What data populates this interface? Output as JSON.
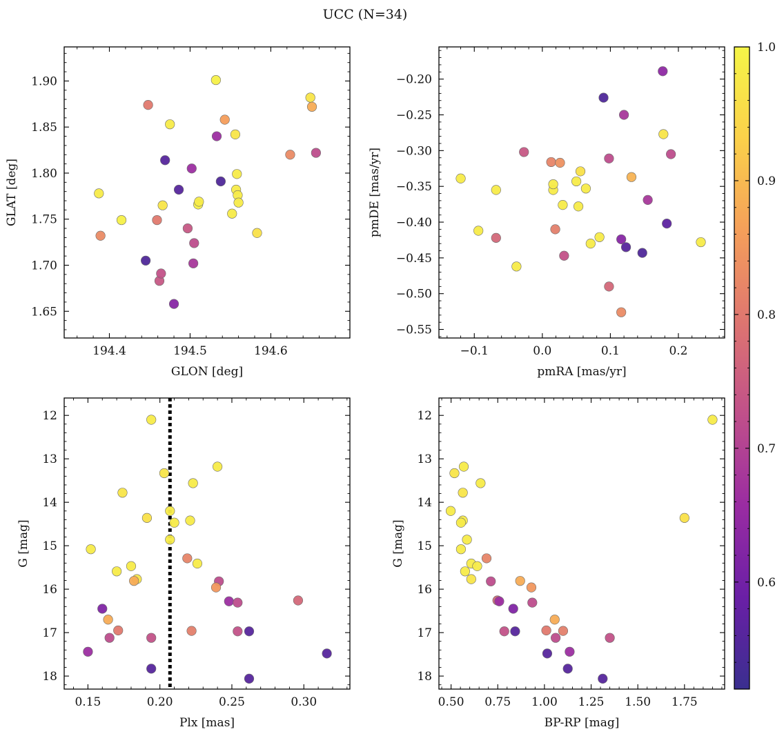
{
  "suptitle": "UCC (N=34)",
  "colors": {
    "marker_edge": "#6b6b6b",
    "vline": "#000000",
    "colormap": [
      "#3a2f8f",
      "#6a1fa6",
      "#9a2ca2",
      "#c0508a",
      "#de7570",
      "#f59f5a",
      "#fbd14a",
      "#f5f548"
    ]
  },
  "colorbar": {
    "range": [
      0.52,
      1.0
    ],
    "ticks": [
      0.6,
      0.7,
      0.8,
      0.9,
      1.0
    ],
    "tick_labels": [
      "0.6",
      "0.7",
      "0.8",
      "0.9",
      "1.0"
    ]
  },
  "chart_data": [
    {
      "type": "scatter",
      "panel": "top-left",
      "xlabel": "GLON [deg]",
      "ylabel": "GLAT [deg]",
      "xlim": [
        194.344,
        194.698
      ],
      "ylim": [
        1.621,
        1.937
      ],
      "y_inverted": false,
      "xticks": [
        194.4,
        194.5,
        194.6
      ],
      "xtick_labels": [
        "194.4",
        "194.5",
        "194.6"
      ],
      "yticks": [
        1.65,
        1.7,
        1.75,
        1.8,
        1.85,
        1.9
      ],
      "ytick_labels": [
        "1.65",
        "1.70",
        "1.75",
        "1.80",
        "1.85",
        "1.90"
      ],
      "points": [
        {
          "x": 194.387,
          "y": 1.778,
          "c": 0.98
        },
        {
          "x": 194.389,
          "y": 1.732,
          "c": 0.83
        },
        {
          "x": 194.415,
          "y": 1.749,
          "c": 0.99
        },
        {
          "x": 194.445,
          "y": 1.705,
          "c": 0.55
        },
        {
          "x": 194.448,
          "y": 1.874,
          "c": 0.8
        },
        {
          "x": 194.459,
          "y": 1.749,
          "c": 0.8
        },
        {
          "x": 194.462,
          "y": 1.683,
          "c": 0.74
        },
        {
          "x": 194.464,
          "y": 1.691,
          "c": 0.73
        },
        {
          "x": 194.466,
          "y": 1.765,
          "c": 0.97
        },
        {
          "x": 194.469,
          "y": 1.814,
          "c": 0.56
        },
        {
          "x": 194.475,
          "y": 1.853,
          "c": 0.98
        },
        {
          "x": 194.48,
          "y": 1.658,
          "c": 0.63
        },
        {
          "x": 194.486,
          "y": 1.782,
          "c": 0.56
        },
        {
          "x": 194.497,
          "y": 1.74,
          "c": 0.74
        },
        {
          "x": 194.502,
          "y": 1.805,
          "c": 0.66
        },
        {
          "x": 194.504,
          "y": 1.702,
          "c": 0.68
        },
        {
          "x": 194.505,
          "y": 1.724,
          "c": 0.72
        },
        {
          "x": 194.51,
          "y": 1.766,
          "c": 0.99
        },
        {
          "x": 194.511,
          "y": 1.769,
          "c": 0.98
        },
        {
          "x": 194.532,
          "y": 1.901,
          "c": 0.99
        },
        {
          "x": 194.533,
          "y": 1.84,
          "c": 0.66
        },
        {
          "x": 194.538,
          "y": 1.791,
          "c": 0.55
        },
        {
          "x": 194.543,
          "y": 1.858,
          "c": 0.86
        },
        {
          "x": 194.552,
          "y": 1.756,
          "c": 0.98
        },
        {
          "x": 194.556,
          "y": 1.842,
          "c": 0.97
        },
        {
          "x": 194.557,
          "y": 1.782,
          "c": 0.98
        },
        {
          "x": 194.558,
          "y": 1.799,
          "c": 0.98
        },
        {
          "x": 194.559,
          "y": 1.776,
          "c": 0.98
        },
        {
          "x": 194.56,
          "y": 1.768,
          "c": 0.98
        },
        {
          "x": 194.583,
          "y": 1.735,
          "c": 0.96
        },
        {
          "x": 194.624,
          "y": 1.82,
          "c": 0.83
        },
        {
          "x": 194.649,
          "y": 1.882,
          "c": 0.97
        },
        {
          "x": 194.651,
          "y": 1.872,
          "c": 0.88
        },
        {
          "x": 194.656,
          "y": 1.822,
          "c": 0.72
        }
      ]
    },
    {
      "type": "scatter",
      "panel": "top-right",
      "xlabel": "pmRA [mas/yr]",
      "ylabel": "pmDE [mas/yr]",
      "xlim": [
        -0.152,
        0.268
      ],
      "ylim": [
        -0.562,
        -0.155
      ],
      "y_inverted": false,
      "xticks": [
        -0.1,
        0.0,
        0.1,
        0.2
      ],
      "xtick_labels": [
        "−0.1",
        "0.0",
        "0.1",
        "0.2"
      ],
      "yticks": [
        -0.55,
        -0.5,
        -0.45,
        -0.4,
        -0.35,
        -0.3,
        -0.25,
        -0.2
      ],
      "ytick_labels": [
        "−0.55",
        "−0.50",
        "−0.45",
        "−0.40",
        "−0.35",
        "−0.30",
        "−0.25",
        "−0.20"
      ],
      "points": [
        {
          "x": -0.12,
          "y": -0.339,
          "c": 0.98
        },
        {
          "x": -0.094,
          "y": -0.412,
          "c": 0.98
        },
        {
          "x": -0.068,
          "y": -0.355,
          "c": 0.98
        },
        {
          "x": -0.068,
          "y": -0.422,
          "c": 0.77
        },
        {
          "x": -0.038,
          "y": -0.462,
          "c": 0.98
        },
        {
          "x": -0.027,
          "y": -0.302,
          "c": 0.74
        },
        {
          "x": 0.013,
          "y": -0.316,
          "c": 0.82
        },
        {
          "x": 0.016,
          "y": -0.355,
          "c": 0.98
        },
        {
          "x": 0.016,
          "y": -0.347,
          "c": 0.98
        },
        {
          "x": 0.019,
          "y": -0.41,
          "c": 0.81
        },
        {
          "x": 0.026,
          "y": -0.317,
          "c": 0.84
        },
        {
          "x": 0.03,
          "y": -0.376,
          "c": 0.98
        },
        {
          "x": 0.032,
          "y": -0.447,
          "c": 0.73
        },
        {
          "x": 0.05,
          "y": -0.343,
          "c": 0.98
        },
        {
          "x": 0.053,
          "y": -0.378,
          "c": 0.98
        },
        {
          "x": 0.056,
          "y": -0.329,
          "c": 0.96
        },
        {
          "x": 0.064,
          "y": -0.353,
          "c": 0.98
        },
        {
          "x": 0.071,
          "y": -0.43,
          "c": 0.98
        },
        {
          "x": 0.084,
          "y": -0.421,
          "c": 0.98
        },
        {
          "x": 0.09,
          "y": -0.226,
          "c": 0.55
        },
        {
          "x": 0.098,
          "y": -0.311,
          "c": 0.72
        },
        {
          "x": 0.098,
          "y": -0.49,
          "c": 0.77
        },
        {
          "x": 0.116,
          "y": -0.526,
          "c": 0.83
        },
        {
          "x": 0.116,
          "y": -0.424,
          "c": 0.63
        },
        {
          "x": 0.12,
          "y": -0.25,
          "c": 0.68
        },
        {
          "x": 0.123,
          "y": -0.435,
          "c": 0.56
        },
        {
          "x": 0.131,
          "y": -0.337,
          "c": 0.89
        },
        {
          "x": 0.147,
          "y": -0.443,
          "c": 0.55
        },
        {
          "x": 0.155,
          "y": -0.369,
          "c": 0.68
        },
        {
          "x": 0.177,
          "y": -0.189,
          "c": 0.64
        },
        {
          "x": 0.178,
          "y": -0.277,
          "c": 0.97
        },
        {
          "x": 0.183,
          "y": -0.402,
          "c": 0.57
        },
        {
          "x": 0.189,
          "y": -0.305,
          "c": 0.72
        },
        {
          "x": 0.233,
          "y": -0.428,
          "c": 0.98
        }
      ]
    },
    {
      "type": "scatter",
      "panel": "bottom-left",
      "xlabel": "Plx [mas]",
      "ylabel": "G [mag]",
      "xlim": [
        0.1335,
        0.332
      ],
      "ylim": [
        11.6,
        18.3
      ],
      "y_inverted": true,
      "vline": 0.207,
      "xticks": [
        0.15,
        0.2,
        0.25,
        0.3
      ],
      "xtick_labels": [
        "0.15",
        "0.20",
        "0.25",
        "0.30"
      ],
      "yticks": [
        12,
        13,
        14,
        15,
        16,
        17,
        18
      ],
      "ytick_labels": [
        "12",
        "13",
        "14",
        "15",
        "16",
        "17",
        "18"
      ],
      "points": [
        {
          "x": 0.194,
          "y": 12.1,
          "c": 0.98
        },
        {
          "x": 0.24,
          "y": 13.18,
          "c": 0.98
        },
        {
          "x": 0.203,
          "y": 13.33,
          "c": 0.97
        },
        {
          "x": 0.223,
          "y": 13.56,
          "c": 0.98
        },
        {
          "x": 0.174,
          "y": 13.78,
          "c": 0.97
        },
        {
          "x": 0.207,
          "y": 14.2,
          "c": 0.98
        },
        {
          "x": 0.191,
          "y": 14.36,
          "c": 0.96
        },
        {
          "x": 0.221,
          "y": 14.42,
          "c": 0.98
        },
        {
          "x": 0.21,
          "y": 14.47,
          "c": 0.98
        },
        {
          "x": 0.207,
          "y": 14.86,
          "c": 0.98
        },
        {
          "x": 0.152,
          "y": 15.08,
          "c": 0.98
        },
        {
          "x": 0.219,
          "y": 15.29,
          "c": 0.82
        },
        {
          "x": 0.226,
          "y": 15.41,
          "c": 0.98
        },
        {
          "x": 0.18,
          "y": 15.47,
          "c": 0.98
        },
        {
          "x": 0.17,
          "y": 15.59,
          "c": 0.98
        },
        {
          "x": 0.184,
          "y": 15.77,
          "c": 0.97
        },
        {
          "x": 0.182,
          "y": 15.81,
          "c": 0.88
        },
        {
          "x": 0.241,
          "y": 15.82,
          "c": 0.72
        },
        {
          "x": 0.239,
          "y": 15.96,
          "c": 0.85
        },
        {
          "x": 0.296,
          "y": 16.26,
          "c": 0.77
        },
        {
          "x": 0.248,
          "y": 16.28,
          "c": 0.66
        },
        {
          "x": 0.254,
          "y": 16.31,
          "c": 0.72
        },
        {
          "x": 0.16,
          "y": 16.45,
          "c": 0.62
        },
        {
          "x": 0.164,
          "y": 16.7,
          "c": 0.88
        },
        {
          "x": 0.171,
          "y": 16.95,
          "c": 0.8
        },
        {
          "x": 0.222,
          "y": 16.96,
          "c": 0.81
        },
        {
          "x": 0.254,
          "y": 16.97,
          "c": 0.73
        },
        {
          "x": 0.262,
          "y": 16.97,
          "c": 0.56
        },
        {
          "x": 0.165,
          "y": 17.12,
          "c": 0.72
        },
        {
          "x": 0.194,
          "y": 17.12,
          "c": 0.73
        },
        {
          "x": 0.15,
          "y": 17.44,
          "c": 0.66
        },
        {
          "x": 0.316,
          "y": 17.48,
          "c": 0.56
        },
        {
          "x": 0.194,
          "y": 17.83,
          "c": 0.56
        },
        {
          "x": 0.262,
          "y": 18.06,
          "c": 0.56
        }
      ]
    },
    {
      "type": "scatter",
      "panel": "bottom-right",
      "xlabel": "BP-RP [mag]",
      "ylabel": "G [mag]",
      "xlim": [
        0.435,
        1.965
      ],
      "ylim": [
        11.6,
        18.3
      ],
      "y_inverted": true,
      "xticks": [
        0.5,
        0.75,
        1.0,
        1.25,
        1.5,
        1.75
      ],
      "xtick_labels": [
        "0.50",
        "0.75",
        "1.00",
        "1.25",
        "1.50",
        "1.75"
      ],
      "yticks": [
        12,
        13,
        14,
        15,
        16,
        17,
        18
      ],
      "ytick_labels": [
        "12",
        "13",
        "14",
        "15",
        "16",
        "17",
        "18"
      ],
      "points": [
        {
          "x": 1.9,
          "y": 12.1,
          "c": 0.98
        },
        {
          "x": 0.568,
          "y": 13.18,
          "c": 0.98
        },
        {
          "x": 0.518,
          "y": 13.33,
          "c": 0.97
        },
        {
          "x": 0.658,
          "y": 13.56,
          "c": 0.98
        },
        {
          "x": 0.563,
          "y": 13.78,
          "c": 0.97
        },
        {
          "x": 0.498,
          "y": 14.2,
          "c": 0.98
        },
        {
          "x": 1.75,
          "y": 14.36,
          "c": 0.96
        },
        {
          "x": 0.563,
          "y": 14.42,
          "c": 0.98
        },
        {
          "x": 0.553,
          "y": 14.47,
          "c": 0.98
        },
        {
          "x": 0.585,
          "y": 14.86,
          "c": 0.98
        },
        {
          "x": 0.553,
          "y": 15.08,
          "c": 0.98
        },
        {
          "x": 0.69,
          "y": 15.29,
          "c": 0.82
        },
        {
          "x": 0.608,
          "y": 15.41,
          "c": 0.98
        },
        {
          "x": 0.64,
          "y": 15.47,
          "c": 0.98
        },
        {
          "x": 0.575,
          "y": 15.59,
          "c": 0.98
        },
        {
          "x": 0.608,
          "y": 15.77,
          "c": 0.97
        },
        {
          "x": 0.87,
          "y": 15.81,
          "c": 0.88
        },
        {
          "x": 0.713,
          "y": 15.82,
          "c": 0.72
        },
        {
          "x": 0.93,
          "y": 15.96,
          "c": 0.85
        },
        {
          "x": 0.748,
          "y": 16.26,
          "c": 0.77
        },
        {
          "x": 0.758,
          "y": 16.28,
          "c": 0.66
        },
        {
          "x": 0.935,
          "y": 16.31,
          "c": 0.72
        },
        {
          "x": 0.833,
          "y": 16.45,
          "c": 0.62
        },
        {
          "x": 1.055,
          "y": 16.7,
          "c": 0.88
        },
        {
          "x": 1.01,
          "y": 16.95,
          "c": 0.8
        },
        {
          "x": 1.1,
          "y": 16.96,
          "c": 0.81
        },
        {
          "x": 0.785,
          "y": 16.97,
          "c": 0.73
        },
        {
          "x": 0.843,
          "y": 16.97,
          "c": 0.56
        },
        {
          "x": 1.06,
          "y": 17.12,
          "c": 0.72
        },
        {
          "x": 1.35,
          "y": 17.12,
          "c": 0.73
        },
        {
          "x": 1.135,
          "y": 17.44,
          "c": 0.66
        },
        {
          "x": 1.015,
          "y": 17.48,
          "c": 0.56
        },
        {
          "x": 1.125,
          "y": 17.83,
          "c": 0.56
        },
        {
          "x": 1.312,
          "y": 18.06,
          "c": 0.56
        }
      ]
    }
  ]
}
